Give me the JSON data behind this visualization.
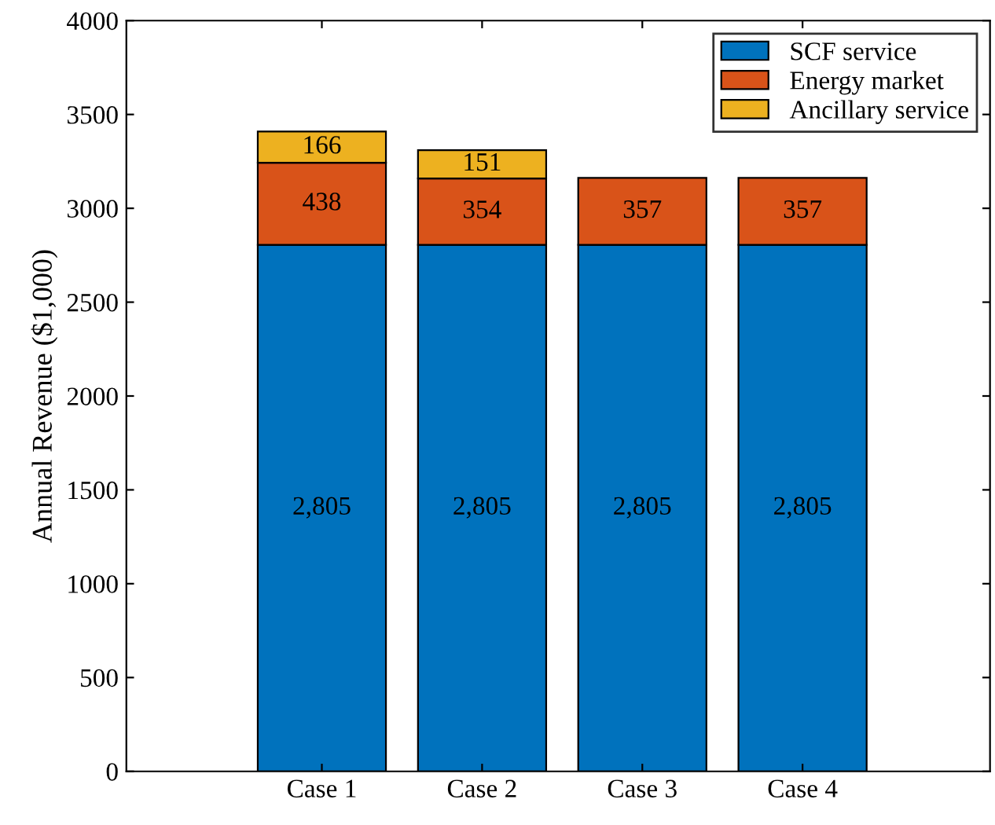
{
  "chart_data": {
    "type": "bar",
    "stacked": true,
    "ylabel": "Annual Revenue ($1,000)",
    "categories": [
      "Case 1",
      "Case 2",
      "Case 3",
      "Case 4"
    ],
    "series": [
      {
        "name": "SCF service",
        "color": "#0072bd",
        "values": [
          2805,
          2805,
          2805,
          2805
        ],
        "value_labels": [
          "2,805",
          "2,805",
          "2,805",
          "2,805"
        ]
      },
      {
        "name": "Energy market",
        "color": "#d95319",
        "values": [
          438,
          354,
          357,
          357
        ],
        "value_labels": [
          "438",
          "354",
          "357",
          "357"
        ]
      },
      {
        "name": "Ancillary service",
        "color": "#edb120",
        "values": [
          166,
          151,
          null,
          null
        ],
        "value_labels": [
          "166",
          "151",
          null,
          null
        ]
      }
    ],
    "ylim": [
      0,
      4000
    ],
    "yticks": [
      0,
      500,
      1000,
      1500,
      2000,
      2500,
      3000,
      3500,
      4000
    ],
    "legend": "top right",
    "grid": false
  }
}
